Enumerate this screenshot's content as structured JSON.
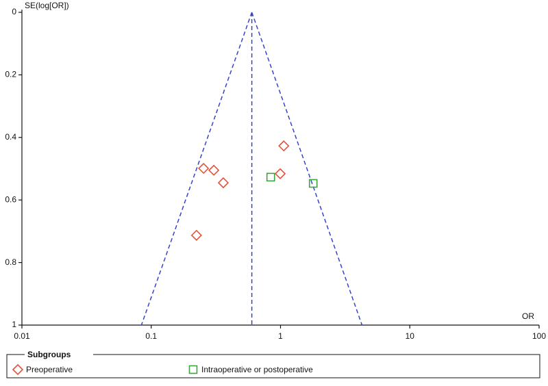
{
  "chart_data": {
    "type": "scatter",
    "y_label": "SE(log[OR])",
    "x_label": "OR",
    "x_log": true,
    "y_inverted": true,
    "xlim": [
      0.01,
      100
    ],
    "xticks": [
      0.01,
      0.1,
      1,
      10,
      100
    ],
    "ylim": [
      0,
      1
    ],
    "yticks": [
      0,
      0.2,
      0.4,
      0.6,
      0.8,
      1
    ],
    "funnel": {
      "color": "#3344cc",
      "pooled": 0.6,
      "lower": 0.084,
      "upper": 4.27
    },
    "legend_title": "Subgroups",
    "series": [
      {
        "name": "Preoperative",
        "color": "#e0533a",
        "marker": "diamond",
        "x": [
          0.254,
          0.305,
          0.361,
          0.224,
          1.06,
          0.995
        ],
        "values": [
          0.499,
          0.505,
          0.545,
          0.713,
          0.427,
          0.516
        ]
      },
      {
        "name": "Intraoperative or postoperative",
        "color": "#3aa53a",
        "marker": "square",
        "x": [
          0.84,
          1.79
        ],
        "values": [
          0.527,
          0.547
        ]
      }
    ]
  }
}
